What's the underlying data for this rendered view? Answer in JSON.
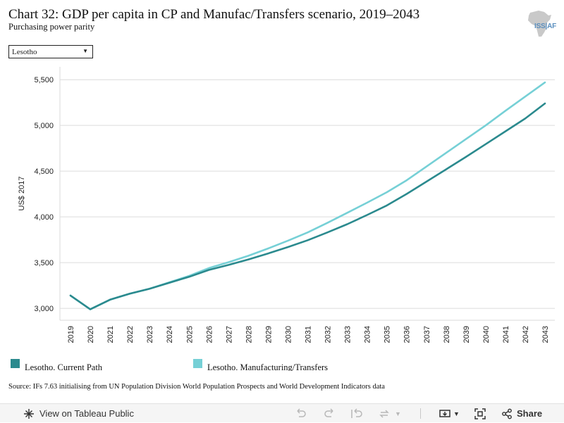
{
  "header": {
    "title": "Chart 32: GDP per capita in CP and Manufac/Transfers scenario, 2019–2043",
    "subtitle": "Purchasing power parity",
    "logo_text": "ISS|AF"
  },
  "filter": {
    "selected": "Lesotho"
  },
  "chart_data": {
    "type": "line",
    "title": "",
    "xlabel": "",
    "ylabel": "US$ 2017",
    "x": [
      "2019",
      "2020",
      "2021",
      "2022",
      "2023",
      "2024",
      "2025",
      "2026",
      "2027",
      "2028",
      "2029",
      "2030",
      "2031",
      "2032",
      "2033",
      "2034",
      "2035",
      "2036",
      "2037",
      "2038",
      "2039",
      "2040",
      "2041",
      "2042",
      "2043"
    ],
    "yticks": [
      3000,
      3500,
      4000,
      4500,
      5000,
      5500
    ],
    "ytick_labels": [
      "3,000",
      "3,500",
      "4,000",
      "4,500",
      "5,000",
      "5,500"
    ],
    "ylim": [
      2870,
      5640
    ],
    "grid": true,
    "legend_position": "bottom",
    "series": [
      {
        "name": "Lesotho. Current Path",
        "color": "#2b8a8e",
        "values": [
          3140,
          2990,
          3095,
          3160,
          3215,
          3280,
          3345,
          3420,
          3475,
          3535,
          3600,
          3670,
          3745,
          3830,
          3920,
          4020,
          4125,
          4250,
          4385,
          4520,
          4655,
          4795,
          4935,
          5075,
          5240
        ]
      },
      {
        "name": "Lesotho. Manufacturing/Transfers",
        "color": "#76d0d6",
        "values": [
          3140,
          2990,
          3095,
          3160,
          3215,
          3285,
          3355,
          3440,
          3505,
          3575,
          3655,
          3740,
          3830,
          3935,
          4045,
          4155,
          4270,
          4400,
          4550,
          4700,
          4850,
          5000,
          5160,
          5315,
          5470
        ]
      }
    ]
  },
  "source": "Source: IFs 7.63 initialising from UN Population Division World Population Prospects and World Development Indicators data",
  "toolbar": {
    "view_label": "View on Tableau Public",
    "share_label": "Share"
  }
}
